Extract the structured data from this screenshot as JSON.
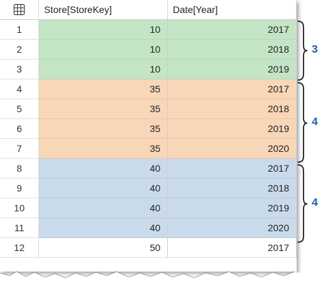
{
  "table": {
    "columns": [
      "Store[StoreKey]",
      "Date[Year]"
    ],
    "rows": [
      {
        "n": "1",
        "storekey": "10",
        "year": "2017"
      },
      {
        "n": "2",
        "storekey": "10",
        "year": "2018"
      },
      {
        "n": "3",
        "storekey": "10",
        "year": "2019"
      },
      {
        "n": "4",
        "storekey": "35",
        "year": "2017"
      },
      {
        "n": "5",
        "storekey": "35",
        "year": "2018"
      },
      {
        "n": "6",
        "storekey": "35",
        "year": "2019"
      },
      {
        "n": "7",
        "storekey": "35",
        "year": "2020"
      },
      {
        "n": "8",
        "storekey": "40",
        "year": "2017"
      },
      {
        "n": "9",
        "storekey": "40",
        "year": "2018"
      },
      {
        "n": "10",
        "storekey": "40",
        "year": "2019"
      },
      {
        "n": "11",
        "storekey": "40",
        "year": "2020"
      },
      {
        "n": "12",
        "storekey": "50",
        "year": "2017"
      }
    ]
  },
  "groups": [
    {
      "count": "3",
      "color": "#c4e5c5"
    },
    {
      "count": "4",
      "color": "#f8d6b8"
    },
    {
      "count": "4",
      "color": "#c9dbeb"
    }
  ],
  "icons": {
    "corner": "grid-icon"
  },
  "colors": {
    "annotation": "#1f5fb0"
  }
}
